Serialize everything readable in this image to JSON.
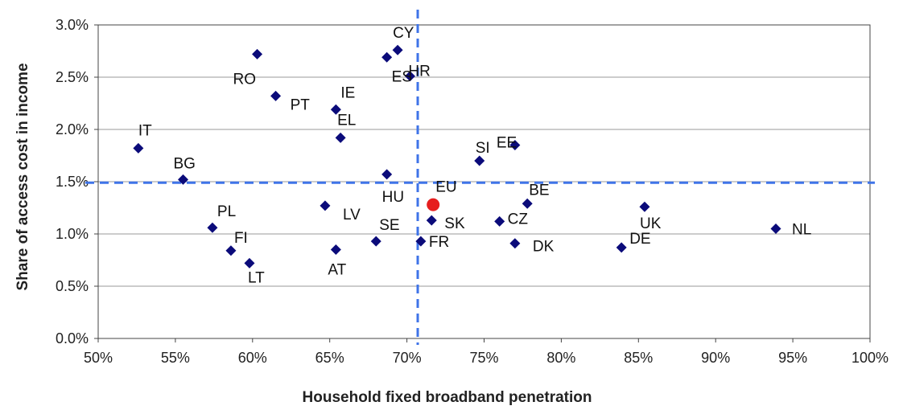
{
  "chart_data": {
    "type": "scatter",
    "xlabel": "Household  fixed broadband penetration",
    "ylabel": "Share  of  access  cost  in  income",
    "xlim": [
      0.5,
      1.0
    ],
    "ylim": [
      0.0,
      0.03
    ],
    "x_ticks": [
      0.5,
      0.55,
      0.6,
      0.65,
      0.7,
      0.75,
      0.8,
      0.85,
      0.9,
      0.95,
      1.0
    ],
    "x_tick_labels": [
      "50%",
      "55%",
      "60%",
      "65%",
      "70%",
      "75%",
      "80%",
      "85%",
      "90%",
      "95%",
      "100%"
    ],
    "y_ticks": [
      0.0,
      0.005,
      0.01,
      0.015,
      0.02,
      0.025,
      0.03
    ],
    "y_tick_labels": [
      "0.0%",
      "0.5%",
      "1.0%",
      "1.5%",
      "2.0%",
      "2.5%",
      "3.0%"
    ],
    "grid": "horizontal",
    "reference_lines": {
      "x": 0.707,
      "y": 0.0149,
      "color": "#3f74e8",
      "style": "dashed"
    },
    "marker_color": "#0b0b7a",
    "highlight_color": "#e61e1e",
    "points": [
      {
        "label": "IT",
        "x": 0.526,
        "y": 0.0182
      },
      {
        "label": "BG",
        "x": 0.555,
        "y": 0.0152
      },
      {
        "label": "PL",
        "x": 0.574,
        "y": 0.0106
      },
      {
        "label": "FI",
        "x": 0.586,
        "y": 0.0084
      },
      {
        "label": "LT",
        "x": 0.598,
        "y": 0.0072
      },
      {
        "label": "RO",
        "x": 0.603,
        "y": 0.0272
      },
      {
        "label": "PT",
        "x": 0.615,
        "y": 0.0232
      },
      {
        "label": "LV",
        "x": 0.647,
        "y": 0.0127
      },
      {
        "label": "AT",
        "x": 0.654,
        "y": 0.0085
      },
      {
        "label": "IE",
        "x": 0.654,
        "y": 0.0219
      },
      {
        "label": "EL",
        "x": 0.657,
        "y": 0.0192
      },
      {
        "label": "SE",
        "x": 0.68,
        "y": 0.0093
      },
      {
        "label": "HU",
        "x": 0.687,
        "y": 0.0157
      },
      {
        "label": "ES",
        "x": 0.687,
        "y": 0.0269
      },
      {
        "label": "CY",
        "x": 0.694,
        "y": 0.0276
      },
      {
        "label": "HR",
        "x": 0.702,
        "y": 0.0251
      },
      {
        "label": "FR",
        "x": 0.709,
        "y": 0.0093
      },
      {
        "label": "SK",
        "x": 0.716,
        "y": 0.0113
      },
      {
        "label": "EU",
        "x": 0.717,
        "y": 0.0128,
        "highlight": true
      },
      {
        "label": "SI",
        "x": 0.747,
        "y": 0.017
      },
      {
        "label": "CZ",
        "x": 0.76,
        "y": 0.0112
      },
      {
        "label": "EE",
        "x": 0.77,
        "y": 0.0185
      },
      {
        "label": "DK",
        "x": 0.77,
        "y": 0.0091
      },
      {
        "label": "BE",
        "x": 0.778,
        "y": 0.0129
      },
      {
        "label": "DE",
        "x": 0.839,
        "y": 0.0087
      },
      {
        "label": "UK",
        "x": 0.854,
        "y": 0.0126
      },
      {
        "label": "NL",
        "x": 0.939,
        "y": 0.0105
      }
    ]
  }
}
